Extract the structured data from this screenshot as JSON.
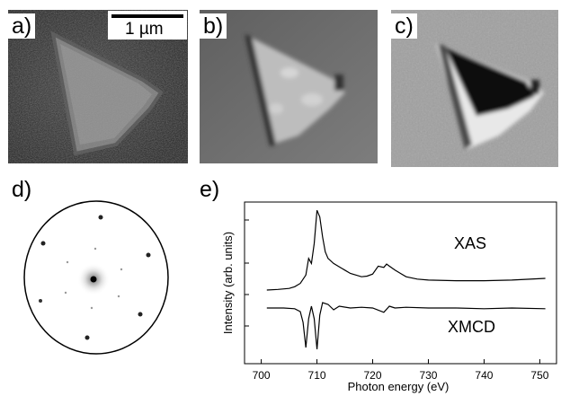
{
  "panels": {
    "a": {
      "label": "a)",
      "scale_bar": "1 µm"
    },
    "b": {
      "label": "b)"
    },
    "c": {
      "label": "c)"
    },
    "d": {
      "label": "d)"
    },
    "e": {
      "label": "e)"
    }
  },
  "chart_data": {
    "type": "line",
    "xlabel": "Photon energy (eV)",
    "ylabel": "Intensity (arb. units)",
    "xlim": [
      697,
      753
    ],
    "x_ticks": [
      "700",
      "710",
      "720",
      "730",
      "740",
      "750"
    ],
    "y_tick_labels_shown": false,
    "grid": false,
    "annotations": [
      "XAS",
      "XMCD"
    ],
    "series": [
      {
        "name": "XAS",
        "x": [
          701,
          703,
          705,
          706,
          707,
          708,
          708.5,
          709,
          709.5,
          710,
          710.5,
          711,
          711.5,
          712,
          713,
          714,
          715,
          716,
          717,
          718,
          719,
          720,
          721,
          722,
          722.5,
          723,
          724,
          725,
          726,
          728,
          730,
          735,
          740,
          745,
          751
        ],
        "values": [
          0.0,
          0.02,
          0.05,
          0.1,
          0.2,
          0.45,
          0.95,
          0.8,
          1.4,
          2.4,
          2.2,
          1.6,
          1.15,
          0.95,
          0.8,
          0.7,
          0.6,
          0.5,
          0.45,
          0.4,
          0.42,
          0.48,
          0.72,
          0.68,
          0.78,
          0.72,
          0.6,
          0.5,
          0.4,
          0.33,
          0.3,
          0.28,
          0.28,
          0.3,
          0.35
        ]
      },
      {
        "name": "XMCD",
        "x": [
          701,
          704,
          706,
          707,
          707.5,
          708,
          708.5,
          709,
          709.5,
          710,
          710.5,
          711,
          712,
          713,
          714,
          716,
          718,
          720,
          722,
          723,
          724,
          726,
          730,
          735,
          740,
          745,
          751
        ],
        "values": [
          0.0,
          0.0,
          -0.02,
          -0.1,
          -0.4,
          -1.1,
          -0.3,
          0.05,
          -0.3,
          -1.15,
          -0.2,
          0.15,
          0.1,
          -0.05,
          0.05,
          0.0,
          0.02,
          0.0,
          -0.12,
          0.05,
          0.0,
          0.02,
          0.0,
          0.0,
          -0.02,
          0.0,
          -0.02
        ]
      }
    ]
  }
}
